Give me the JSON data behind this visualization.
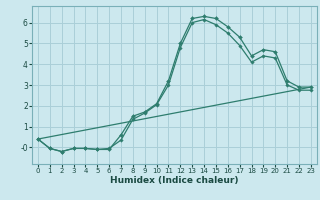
{
  "xlabel": "Humidex (Indice chaleur)",
  "background_color": "#cce8ee",
  "grid_color": "#aacfd8",
  "line_color": "#2e7d6e",
  "xlim": [
    -0.5,
    23.5
  ],
  "ylim": [
    -0.8,
    6.8
  ],
  "xticks": [
    0,
    1,
    2,
    3,
    4,
    5,
    6,
    7,
    8,
    9,
    10,
    11,
    12,
    13,
    14,
    15,
    16,
    17,
    18,
    19,
    20,
    21,
    22,
    23
  ],
  "yticks": [
    0,
    1,
    2,
    3,
    4,
    5,
    6
  ],
  "ytick_labels": [
    "-0",
    "1",
    "2",
    "3",
    "4",
    "5",
    "6"
  ],
  "line1_x": [
    0,
    1,
    2,
    3,
    4,
    5,
    6,
    7,
    8,
    9,
    10,
    11,
    12,
    13,
    14,
    15,
    16,
    17,
    18,
    19,
    20,
    21,
    22,
    23
  ],
  "line1_y": [
    0.4,
    -0.05,
    -0.2,
    -0.05,
    -0.05,
    -0.1,
    -0.1,
    0.6,
    1.5,
    1.7,
    2.1,
    3.2,
    5.0,
    6.2,
    6.3,
    6.2,
    5.8,
    5.3,
    4.4,
    4.7,
    4.6,
    3.2,
    2.9,
    2.9
  ],
  "line2_x": [
    0,
    1,
    2,
    3,
    4,
    5,
    6,
    7,
    8,
    9,
    10,
    11,
    12,
    13,
    14,
    15,
    16,
    17,
    18,
    19,
    20,
    21,
    22,
    23
  ],
  "line2_y": [
    0.4,
    -0.05,
    -0.2,
    -0.05,
    -0.05,
    -0.1,
    -0.05,
    0.35,
    1.35,
    1.65,
    2.05,
    3.0,
    4.8,
    6.0,
    6.15,
    5.9,
    5.5,
    4.9,
    4.1,
    4.4,
    4.3,
    3.0,
    2.75,
    2.75
  ],
  "line3_x": [
    0,
    23
  ],
  "line3_y": [
    0.4,
    2.9
  ],
  "spine_color": "#7ab0b8"
}
